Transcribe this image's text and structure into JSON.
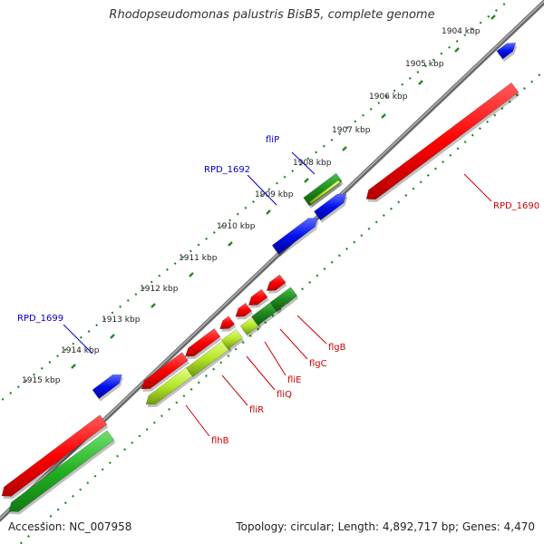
{
  "title": "Rhodopseudomonas palustris BisB5, complete genome",
  "footer": {
    "accession": "Accession: NC_007958",
    "summary": "Topology: circular; Length: 4,892,717 bp; Genes: 4,470"
  },
  "colors": {
    "backbone": "#8a8a8a",
    "scale_dots": "#1f8a1f",
    "label_forward": "#0000cc",
    "label_reverse": "#cc0000"
  },
  "ticks": [
    {
      "kbp": 1904,
      "label": "1904 kbp"
    },
    {
      "kbp": 1905,
      "label": "1905 kbp"
    },
    {
      "kbp": 1906,
      "label": "1906 kbp"
    },
    {
      "kbp": 1907,
      "label": "1907 kbp"
    },
    {
      "kbp": 1908,
      "label": "1908 kbp"
    },
    {
      "kbp": 1909,
      "label": "1909 kbp"
    },
    {
      "kbp": 1910,
      "label": "1910 kbp"
    },
    {
      "kbp": 1911,
      "label": "1911 kbp"
    },
    {
      "kbp": 1912,
      "label": "1912 kbp"
    },
    {
      "kbp": 1913,
      "label": "1913 kbp"
    },
    {
      "kbp": 1914,
      "label": "1914 kbp"
    },
    {
      "kbp": 1915,
      "label": "1915 kbp"
    }
  ],
  "genes": [
    {
      "name": "RPD_1690",
      "strand": "reverse",
      "track": "outer",
      "color": "red",
      "label": "RPD_1690"
    },
    {
      "name": "RPD_1692",
      "strand": "forward",
      "track": "outer",
      "color": "blue",
      "label": "RPD_1692"
    },
    {
      "name": "fliP",
      "strand": "forward",
      "track": "inner",
      "color": "green",
      "label": "fliP"
    },
    {
      "name": "RPD_1699",
      "strand": "forward",
      "track": "outer",
      "color": "blue",
      "label": "RPD_1699"
    },
    {
      "name": "flgB",
      "strand": "reverse",
      "track": "inner",
      "color": "green",
      "label": "flgB"
    },
    {
      "name": "flgC",
      "strand": "reverse",
      "track": "inner",
      "color": "green",
      "label": "flgC"
    },
    {
      "name": "fliE",
      "strand": "reverse",
      "track": "inner",
      "color": "green",
      "label": "fliE"
    },
    {
      "name": "fliQ",
      "strand": "reverse",
      "track": "inner",
      "color": "green",
      "label": "fliQ"
    },
    {
      "name": "fliR",
      "strand": "reverse",
      "track": "inner",
      "color": "yellowgreen",
      "label": "fliR"
    },
    {
      "name": "flhB",
      "strand": "reverse",
      "track": "inner",
      "color": "yellowgreen",
      "label": "flhB"
    }
  ]
}
